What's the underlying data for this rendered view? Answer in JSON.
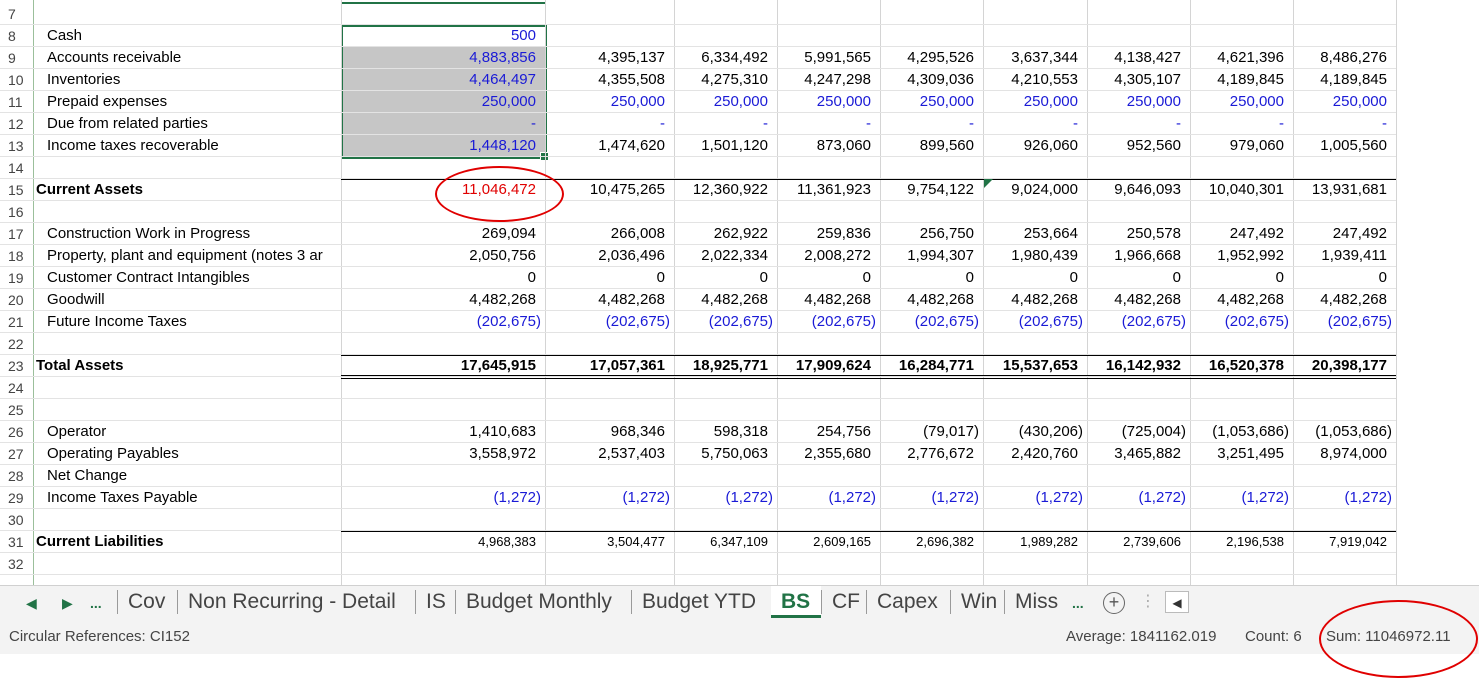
{
  "rows": [
    {
      "n": "7",
      "label": "",
      "style": "",
      "vals": []
    },
    {
      "n": "8",
      "label": "Cash",
      "style": "ind",
      "vals": [
        "500"
      ]
    },
    {
      "n": "9",
      "label": "Accounts receivable",
      "style": "ind",
      "vals": [
        "4,883,856",
        "4,395,137",
        "6,334,492",
        "5,991,565",
        "4,295,526",
        "3,637,344",
        "4,138,427",
        "4,621,396",
        "8,486,276"
      ]
    },
    {
      "n": "10",
      "label": "Inventories",
      "style": "ind",
      "vals": [
        "4,464,497",
        "4,355,508",
        "4,275,310",
        "4,247,298",
        "4,309,036",
        "4,210,553",
        "4,305,107",
        "4,189,845",
        "4,189,845"
      ]
    },
    {
      "n": "11",
      "label": "Prepaid expenses",
      "style": "ind",
      "vals": [
        "250,000",
        "250,000",
        "250,000",
        "250,000",
        "250,000",
        "250,000",
        "250,000",
        "250,000",
        "250,000"
      ]
    },
    {
      "n": "12",
      "label": "Due from related parties",
      "style": "ind",
      "vals": [
        "-",
        "-",
        "-",
        "-",
        "-",
        "-",
        "-",
        "-",
        "-"
      ]
    },
    {
      "n": "13",
      "label": "Income taxes recoverable",
      "style": "ind",
      "vals": [
        "1,448,120",
        "1,474,620",
        "1,501,120",
        "873,060",
        "899,560",
        "926,060",
        "952,560",
        "979,060",
        "1,005,560"
      ]
    },
    {
      "n": "14",
      "label": "",
      "style": "",
      "vals": []
    },
    {
      "n": "15",
      "label": "Current Assets",
      "style": "bold",
      "vals": [
        "11,046,472",
        "10,475,265",
        "12,360,922",
        "11,361,923",
        "9,754,122",
        "9,024,000",
        "9,646,093",
        "10,040,301",
        "13,931,681"
      ]
    },
    {
      "n": "16",
      "label": "",
      "style": "",
      "vals": []
    },
    {
      "n": "17",
      "label": "Construction Work in Progress",
      "style": "ind",
      "vals": [
        "269,094",
        "266,008",
        "262,922",
        "259,836",
        "256,750",
        "253,664",
        "250,578",
        "247,492",
        "247,492"
      ]
    },
    {
      "n": "18",
      "label": "Property, plant and equipment (notes 3 ar",
      "style": "ind",
      "vals": [
        "2,050,756",
        "2,036,496",
        "2,022,334",
        "2,008,272",
        "1,994,307",
        "1,980,439",
        "1,966,668",
        "1,952,992",
        "1,939,411"
      ]
    },
    {
      "n": "19",
      "label": "Customer Contract Intangibles",
      "style": "ind",
      "vals": [
        "0",
        "0",
        "0",
        "0",
        "0",
        "0",
        "0",
        "0",
        "0"
      ]
    },
    {
      "n": "20",
      "label": "Goodwill",
      "style": "ind",
      "vals": [
        "4,482,268",
        "4,482,268",
        "4,482,268",
        "4,482,268",
        "4,482,268",
        "4,482,268",
        "4,482,268",
        "4,482,268",
        "4,482,268"
      ]
    },
    {
      "n": "21",
      "label": "Future Income Taxes",
      "style": "ind",
      "vals": [
        "(202,675)",
        "(202,675)",
        "(202,675)",
        "(202,675)",
        "(202,675)",
        "(202,675)",
        "(202,675)",
        "(202,675)",
        "(202,675)"
      ]
    },
    {
      "n": "22",
      "label": "",
      "style": "",
      "vals": []
    },
    {
      "n": "23",
      "label": "Total Assets",
      "style": "bold",
      "vals": [
        "17,645,915",
        "17,057,361",
        "18,925,771",
        "17,909,624",
        "16,284,771",
        "15,537,653",
        "16,142,932",
        "16,520,378",
        "20,398,177"
      ]
    },
    {
      "n": "24",
      "label": "",
      "style": "",
      "vals": []
    },
    {
      "n": "25",
      "label": "",
      "style": "",
      "vals": []
    },
    {
      "n": "26",
      "label": "Operator",
      "style": "ind",
      "vals": [
        "1,410,683",
        "968,346",
        "598,318",
        "254,756",
        "(79,017)",
        "(430,206)",
        "(725,004)",
        "(1,053,686)",
        "(1,053,686)"
      ]
    },
    {
      "n": "27",
      "label": "Operating Payables",
      "style": "ind",
      "vals": [
        "3,558,972",
        "2,537,403",
        "5,750,063",
        "2,355,680",
        "2,776,672",
        "2,420,760",
        "3,465,882",
        "3,251,495",
        "8,974,000"
      ]
    },
    {
      "n": "28",
      "label": "Net Change",
      "style": "ind",
      "vals": []
    },
    {
      "n": "29",
      "label": "Income Taxes Payable",
      "style": "ind",
      "vals": [
        "(1,272)",
        "(1,272)",
        "(1,272)",
        "(1,272)",
        "(1,272)",
        "(1,272)",
        "(1,272)",
        "(1,272)",
        "(1,272)"
      ]
    },
    {
      "n": "30",
      "label": "",
      "style": "",
      "vals": []
    },
    {
      "n": "31",
      "label": "Current Liabilities",
      "style": "bold",
      "vals": [
        "4,968,383",
        "3,504,477",
        "6,347,109",
        "2,609,165",
        "2,696,382",
        "1,989,282",
        "2,739,606",
        "2,196,538",
        "7,919,042"
      ]
    },
    {
      "n": "32",
      "label": "",
      "style": "",
      "vals": []
    }
  ],
  "tabs": {
    "nav_prev": "◀",
    "nav_next": "▶",
    "more_left": "...",
    "items": [
      "Cov",
      "Non Recurring - Detail",
      "IS",
      "Budget Monthly",
      "Budget YTD",
      "BS",
      "CF",
      "Capex",
      "Win",
      "Miss"
    ],
    "active": "BS",
    "more_right": "...",
    "add": "+",
    "scroll_left": "◀"
  },
  "status": {
    "circular": "Circular References: CI152",
    "average": "Average: 1841162.019",
    "count": "Count: 6",
    "sum": "Sum: 11046972.11"
  },
  "colors": {
    "excel_green": "#217346",
    "highlight_red": "#e00000",
    "input_blue": "#1a1ad6",
    "selection_gray": "#c6c6c6"
  }
}
